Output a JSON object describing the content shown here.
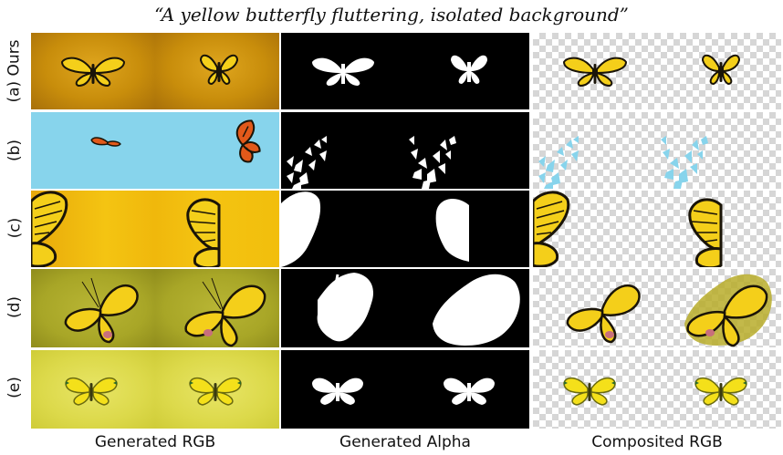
{
  "title": "“A yellow butterfly fluttering, isolated background”",
  "row_labels": [
    "(a) Ours",
    "(b)",
    "(c)",
    "(d)",
    "(e)"
  ],
  "column_labels": [
    "Generated RGB",
    "Generated Alpha",
    "Composited RGB"
  ],
  "colors": {
    "row_a_bg": "#c88d0b",
    "row_b_bg": "#87d4ec",
    "row_c_bg": "#f2be0c",
    "row_d_bg": "#a8a627",
    "row_e_bg": "#dcd94a",
    "butterfly_yellow": "#f4cf1a",
    "butterfly_black": "#1a1408",
    "monarch_orange": "#e2591a",
    "pink_spot": "#c86f7c"
  }
}
